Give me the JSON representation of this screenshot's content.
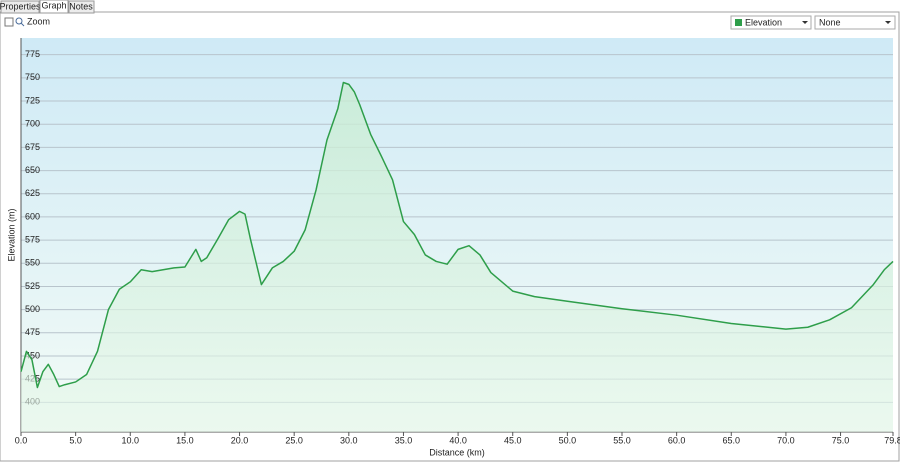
{
  "tabs": [
    "Properties",
    "Graph",
    "Notes"
  ],
  "toolbar": {
    "zoom": "Zoom",
    "second_select": "None"
  },
  "chart_data": {
    "type": "line",
    "x_label": "Distance (km)",
    "y_label": "Elevation (m)",
    "x": [
      0,
      0.5,
      1.0,
      1.5,
      2.0,
      2.5,
      3.0,
      3.5,
      4.0,
      5.0,
      6.0,
      7.0,
      8.0,
      9.0,
      10.0,
      11.0,
      12.0,
      13.0,
      14.0,
      15.0,
      16.0,
      16.5,
      17.0,
      18.0,
      19.0,
      20.0,
      20.5,
      21.0,
      22.0,
      23.0,
      24.0,
      25.0,
      26.0,
      27.0,
      28.0,
      29.0,
      29.5,
      30.0,
      30.5,
      31.0,
      32.0,
      33.0,
      34.0,
      35.0,
      36.0,
      37.0,
      38.0,
      39.0,
      40.0,
      41.0,
      42.0,
      43.0,
      45.0,
      47.0,
      50.0,
      55.0,
      60.0,
      65.0,
      70.0,
      72.0,
      74.0,
      76.0,
      78.0,
      79.0,
      79.8
    ],
    "series": [
      {
        "name": "Elevation",
        "color": "#2e9e4a",
        "values": [
          433,
          455,
          446,
          416,
          433,
          441,
          430,
          417,
          419,
          422,
          430,
          455,
          500,
          522,
          530,
          543,
          541,
          543,
          545,
          546,
          565,
          552,
          556,
          576,
          597,
          606,
          603,
          576,
          527,
          545,
          552,
          563,
          586,
          629,
          683,
          717,
          745,
          743,
          735,
          721,
          689,
          665,
          640,
          595,
          581,
          559,
          552,
          549,
          565,
          569,
          559,
          540,
          520,
          514,
          509,
          501,
          494,
          485,
          479,
          481,
          489,
          502,
          527,
          543,
          552
        ]
      }
    ],
    "xlim": [
      0,
      79.8
    ],
    "xticks": [
      {
        "value": 0,
        "label": "0.0"
      },
      {
        "value": 5,
        "label": "5.0"
      },
      {
        "value": 10,
        "label": "10.0"
      },
      {
        "value": 15,
        "label": "15.0"
      },
      {
        "value": 20,
        "label": "20.0"
      },
      {
        "value": 25,
        "label": "25.0"
      },
      {
        "value": 30,
        "label": "30.0"
      },
      {
        "value": 35,
        "label": "35.0"
      },
      {
        "value": 40,
        "label": "40.0"
      },
      {
        "value": 45,
        "label": "45.0"
      },
      {
        "value": 50,
        "label": "50.0"
      },
      {
        "value": 55,
        "label": "55.0"
      },
      {
        "value": 60,
        "label": "60.0"
      },
      {
        "value": 65,
        "label": "65.0"
      },
      {
        "value": 70,
        "label": "70.0"
      },
      {
        "value": 75,
        "label": "75.0"
      },
      79.8
    ],
    "ylim": [
      368,
      793
    ],
    "yticks": [
      400,
      425,
      450,
      475,
      500,
      525,
      550,
      575,
      600,
      625,
      650,
      675,
      700,
      725,
      750,
      775
    ],
    "grid": true
  }
}
